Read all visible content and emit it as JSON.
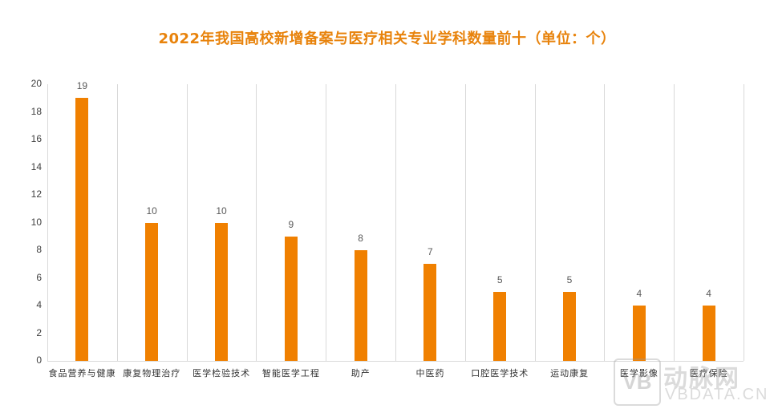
{
  "chart_data": {
    "type": "bar",
    "title": "2022年我国高校新增备案与医疗相关专业学科数量前十（单位：个）",
    "categories": [
      "食品营养与健康",
      "康复物理治疗",
      "医学检验技术",
      "智能医学工程",
      "助产",
      "中医药",
      "口腔医学技术",
      "运动康复",
      "医学影像",
      "医疗保险"
    ],
    "values": [
      19,
      10,
      10,
      9,
      8,
      7,
      5,
      5,
      4,
      4
    ],
    "xlabel": "",
    "ylabel": "",
    "ylim": [
      0,
      20
    ],
    "yticks": [
      "0",
      "2",
      "4",
      "6",
      "8",
      "10",
      "12",
      "14",
      "16",
      "18",
      "20"
    ],
    "grid": "vertical category separators",
    "legend": "none",
    "bar_color": "#f08000",
    "title_color": "#e8830c"
  },
  "watermark": {
    "cn": "动脉网",
    "en": "VBDATA.CN",
    "logo": "VB"
  }
}
